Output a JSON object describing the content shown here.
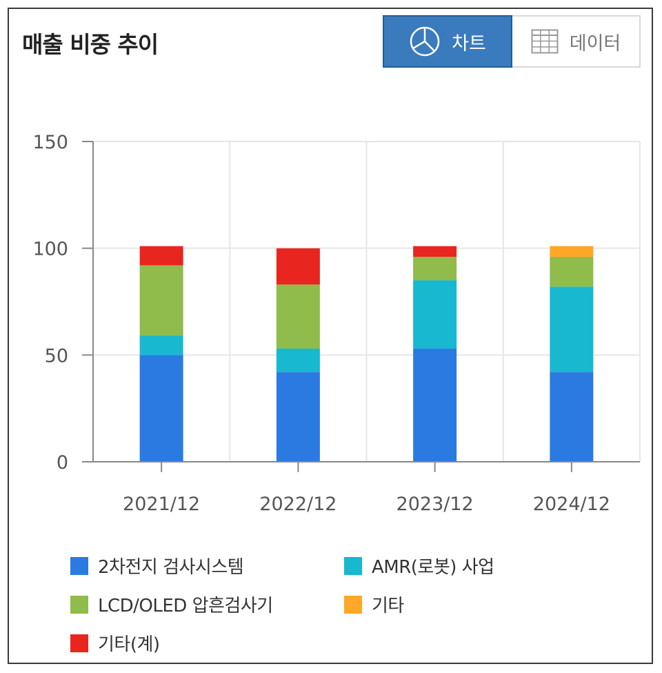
{
  "header": {
    "title": "매출 비중 추이"
  },
  "view_toggle": {
    "chart_label": "차트",
    "data_label": "데이터"
  },
  "chart_data": {
    "type": "bar",
    "stacked": true,
    "categories": [
      "2021/12",
      "2022/12",
      "2023/12",
      "2024/12"
    ],
    "series": [
      {
        "name": "2차전지 검사시스템",
        "color": "#2a7ae2",
        "values": [
          50,
          42,
          53,
          42
        ]
      },
      {
        "name": "AMR(로봇) 사업",
        "color": "#17b8d0",
        "values": [
          9,
          11,
          32,
          40
        ]
      },
      {
        "name": "LCD/OLED 압흔검사기",
        "color": "#8fbc4a",
        "values": [
          33,
          30,
          11,
          14
        ]
      },
      {
        "name": "기타",
        "color": "#ffa726",
        "values": [
          0,
          0,
          0,
          5
        ]
      },
      {
        "name": "기타(계)",
        "color": "#e8261f",
        "values": [
          9,
          17,
          5,
          0
        ]
      }
    ],
    "ylim": [
      0,
      150
    ],
    "yticks": [
      0,
      50,
      100,
      150
    ],
    "grid": true,
    "legend_position": "bottom"
  }
}
